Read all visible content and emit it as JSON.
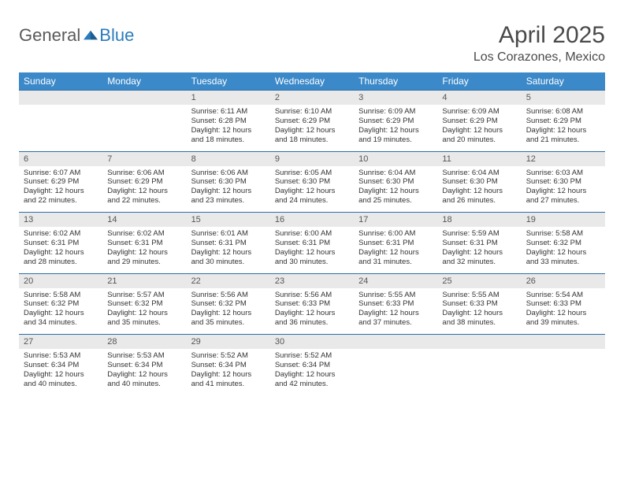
{
  "logo": {
    "text_general": "General",
    "text_blue": "Blue"
  },
  "title": "April 2025",
  "location": "Los Corazones, Mexico",
  "colors": {
    "header_bg": "#3b89c9",
    "header_text": "#ffffff",
    "daynum_bg": "#e9e9e9",
    "rule": "#2f6ea6",
    "logo_blue": "#2b7bbd",
    "logo_gray": "#5a5a5a"
  },
  "weekdays": [
    "Sunday",
    "Monday",
    "Tuesday",
    "Wednesday",
    "Thursday",
    "Friday",
    "Saturday"
  ],
  "weeks": [
    [
      {
        "n": "",
        "sr": "",
        "ss": "",
        "dl": ""
      },
      {
        "n": "",
        "sr": "",
        "ss": "",
        "dl": ""
      },
      {
        "n": "1",
        "sr": "Sunrise: 6:11 AM",
        "ss": "Sunset: 6:28 PM",
        "dl": "Daylight: 12 hours and 18 minutes."
      },
      {
        "n": "2",
        "sr": "Sunrise: 6:10 AM",
        "ss": "Sunset: 6:29 PM",
        "dl": "Daylight: 12 hours and 18 minutes."
      },
      {
        "n": "3",
        "sr": "Sunrise: 6:09 AM",
        "ss": "Sunset: 6:29 PM",
        "dl": "Daylight: 12 hours and 19 minutes."
      },
      {
        "n": "4",
        "sr": "Sunrise: 6:09 AM",
        "ss": "Sunset: 6:29 PM",
        "dl": "Daylight: 12 hours and 20 minutes."
      },
      {
        "n": "5",
        "sr": "Sunrise: 6:08 AM",
        "ss": "Sunset: 6:29 PM",
        "dl": "Daylight: 12 hours and 21 minutes."
      }
    ],
    [
      {
        "n": "6",
        "sr": "Sunrise: 6:07 AM",
        "ss": "Sunset: 6:29 PM",
        "dl": "Daylight: 12 hours and 22 minutes."
      },
      {
        "n": "7",
        "sr": "Sunrise: 6:06 AM",
        "ss": "Sunset: 6:29 PM",
        "dl": "Daylight: 12 hours and 22 minutes."
      },
      {
        "n": "8",
        "sr": "Sunrise: 6:06 AM",
        "ss": "Sunset: 6:30 PM",
        "dl": "Daylight: 12 hours and 23 minutes."
      },
      {
        "n": "9",
        "sr": "Sunrise: 6:05 AM",
        "ss": "Sunset: 6:30 PM",
        "dl": "Daylight: 12 hours and 24 minutes."
      },
      {
        "n": "10",
        "sr": "Sunrise: 6:04 AM",
        "ss": "Sunset: 6:30 PM",
        "dl": "Daylight: 12 hours and 25 minutes."
      },
      {
        "n": "11",
        "sr": "Sunrise: 6:04 AM",
        "ss": "Sunset: 6:30 PM",
        "dl": "Daylight: 12 hours and 26 minutes."
      },
      {
        "n": "12",
        "sr": "Sunrise: 6:03 AM",
        "ss": "Sunset: 6:30 PM",
        "dl": "Daylight: 12 hours and 27 minutes."
      }
    ],
    [
      {
        "n": "13",
        "sr": "Sunrise: 6:02 AM",
        "ss": "Sunset: 6:31 PM",
        "dl": "Daylight: 12 hours and 28 minutes."
      },
      {
        "n": "14",
        "sr": "Sunrise: 6:02 AM",
        "ss": "Sunset: 6:31 PM",
        "dl": "Daylight: 12 hours and 29 minutes."
      },
      {
        "n": "15",
        "sr": "Sunrise: 6:01 AM",
        "ss": "Sunset: 6:31 PM",
        "dl": "Daylight: 12 hours and 30 minutes."
      },
      {
        "n": "16",
        "sr": "Sunrise: 6:00 AM",
        "ss": "Sunset: 6:31 PM",
        "dl": "Daylight: 12 hours and 30 minutes."
      },
      {
        "n": "17",
        "sr": "Sunrise: 6:00 AM",
        "ss": "Sunset: 6:31 PM",
        "dl": "Daylight: 12 hours and 31 minutes."
      },
      {
        "n": "18",
        "sr": "Sunrise: 5:59 AM",
        "ss": "Sunset: 6:31 PM",
        "dl": "Daylight: 12 hours and 32 minutes."
      },
      {
        "n": "19",
        "sr": "Sunrise: 5:58 AM",
        "ss": "Sunset: 6:32 PM",
        "dl": "Daylight: 12 hours and 33 minutes."
      }
    ],
    [
      {
        "n": "20",
        "sr": "Sunrise: 5:58 AM",
        "ss": "Sunset: 6:32 PM",
        "dl": "Daylight: 12 hours and 34 minutes."
      },
      {
        "n": "21",
        "sr": "Sunrise: 5:57 AM",
        "ss": "Sunset: 6:32 PM",
        "dl": "Daylight: 12 hours and 35 minutes."
      },
      {
        "n": "22",
        "sr": "Sunrise: 5:56 AM",
        "ss": "Sunset: 6:32 PM",
        "dl": "Daylight: 12 hours and 35 minutes."
      },
      {
        "n": "23",
        "sr": "Sunrise: 5:56 AM",
        "ss": "Sunset: 6:33 PM",
        "dl": "Daylight: 12 hours and 36 minutes."
      },
      {
        "n": "24",
        "sr": "Sunrise: 5:55 AM",
        "ss": "Sunset: 6:33 PM",
        "dl": "Daylight: 12 hours and 37 minutes."
      },
      {
        "n": "25",
        "sr": "Sunrise: 5:55 AM",
        "ss": "Sunset: 6:33 PM",
        "dl": "Daylight: 12 hours and 38 minutes."
      },
      {
        "n": "26",
        "sr": "Sunrise: 5:54 AM",
        "ss": "Sunset: 6:33 PM",
        "dl": "Daylight: 12 hours and 39 minutes."
      }
    ],
    [
      {
        "n": "27",
        "sr": "Sunrise: 5:53 AM",
        "ss": "Sunset: 6:34 PM",
        "dl": "Daylight: 12 hours and 40 minutes."
      },
      {
        "n": "28",
        "sr": "Sunrise: 5:53 AM",
        "ss": "Sunset: 6:34 PM",
        "dl": "Daylight: 12 hours and 40 minutes."
      },
      {
        "n": "29",
        "sr": "Sunrise: 5:52 AM",
        "ss": "Sunset: 6:34 PM",
        "dl": "Daylight: 12 hours and 41 minutes."
      },
      {
        "n": "30",
        "sr": "Sunrise: 5:52 AM",
        "ss": "Sunset: 6:34 PM",
        "dl": "Daylight: 12 hours and 42 minutes."
      },
      {
        "n": "",
        "sr": "",
        "ss": "",
        "dl": ""
      },
      {
        "n": "",
        "sr": "",
        "ss": "",
        "dl": ""
      },
      {
        "n": "",
        "sr": "",
        "ss": "",
        "dl": ""
      }
    ]
  ]
}
